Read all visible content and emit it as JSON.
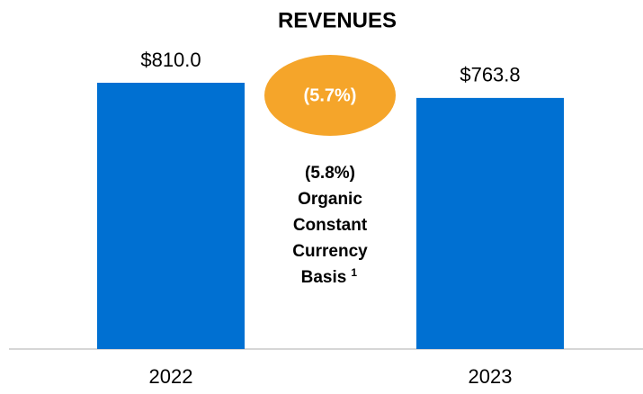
{
  "chart_data": {
    "type": "bar",
    "title": "REVENUES",
    "categories": [
      "2022",
      "2023"
    ],
    "values": [
      810.0,
      763.8
    ],
    "value_labels": [
      "$810.0",
      "$763.8"
    ],
    "color": "#0070d2",
    "annotations": [
      {
        "text": "(5.7%)",
        "color": "#f5a52a"
      },
      {
        "lines": [
          "(5.8%)",
          "Organic",
          "Constant",
          "Currency",
          "Basis"
        ],
        "superscript": "1"
      }
    ]
  }
}
